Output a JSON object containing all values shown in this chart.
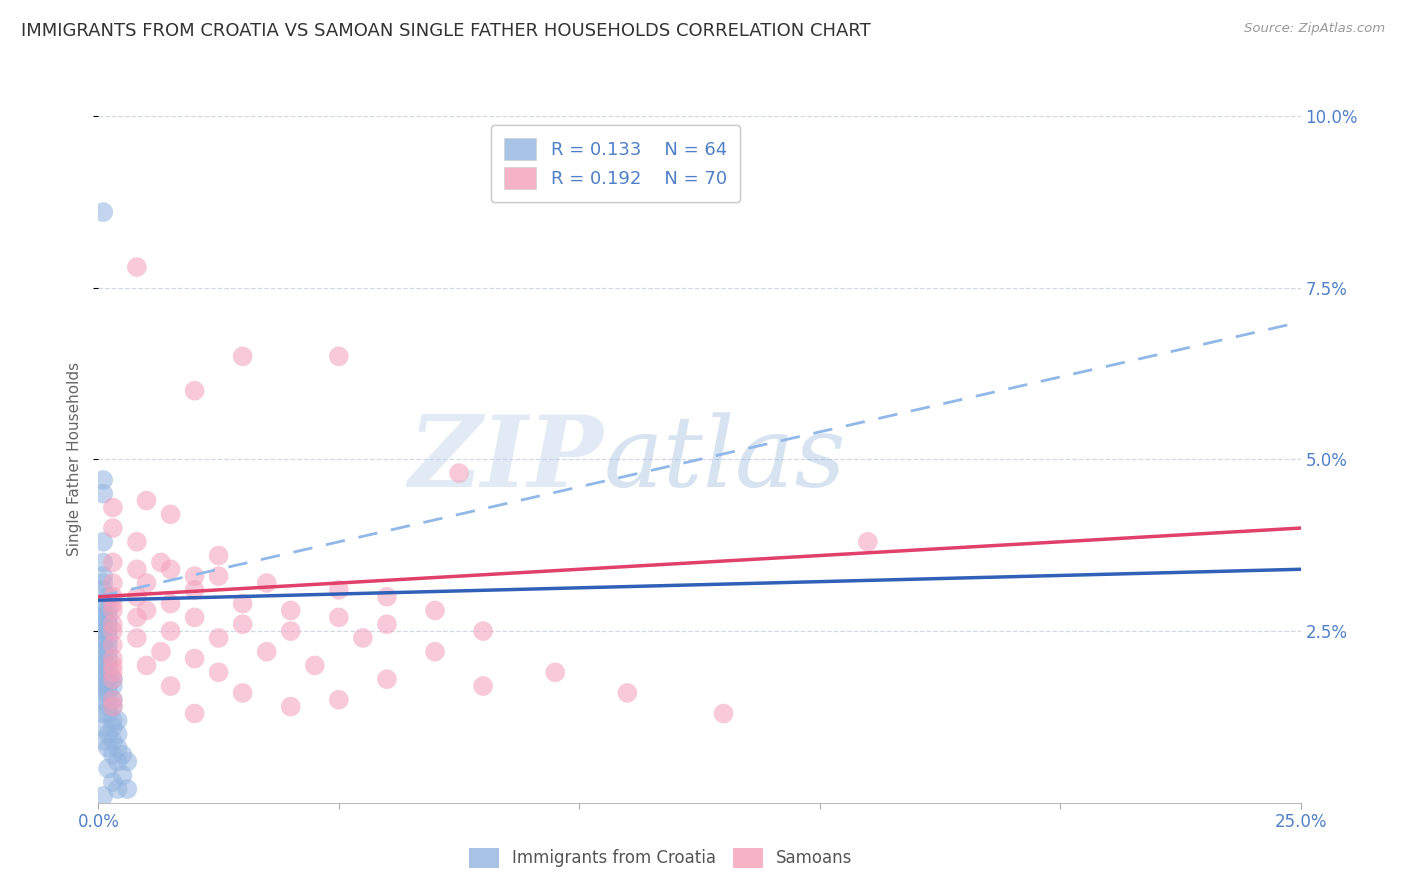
{
  "title": "IMMIGRANTS FROM CROATIA VS SAMOAN SINGLE FATHER HOUSEHOLDS CORRELATION CHART",
  "source": "Source: ZipAtlas.com",
  "ylabel": "Single Father Households",
  "xlim": [
    0.0,
    0.25
  ],
  "ylim": [
    0.0,
    0.1
  ],
  "xticks": [
    0.0,
    0.05,
    0.1,
    0.15,
    0.2,
    0.25
  ],
  "xtick_labels_show": [
    "0.0%",
    "",
    "",
    "",
    "",
    "25.0%"
  ],
  "yticks": [
    0.025,
    0.05,
    0.075,
    0.1
  ],
  "ytick_labels": [
    "2.5%",
    "5.0%",
    "7.5%",
    "10.0%"
  ],
  "croatia_R": "0.133",
  "croatia_N": "64",
  "samoan_R": "0.192",
  "samoan_N": "70",
  "croatia_color": "#93b4e0",
  "samoan_color": "#f4a0bb",
  "trendline_croatia_color": "#3060b8",
  "trendline_samoan_color": "#e0406a",
  "dashed_line_color": "#90b8e8",
  "watermark_zip": "ZIP",
  "watermark_atlas": "atlas",
  "background_color": "#ffffff",
  "grid_color": "#d0d8e8",
  "right_axis_color": "#5080c8",
  "title_color": "#333333",
  "source_color": "#999999",
  "croatia_trend": [
    0.0,
    0.0295,
    0.25,
    0.034
  ],
  "samoan_trend": [
    0.0,
    0.03,
    0.25,
    0.04
  ],
  "dashed_trend": [
    0.0,
    0.03,
    0.25,
    0.07
  ],
  "croatia_points": [
    [
      0.001,
      0.086
    ],
    [
      0.001,
      0.047
    ],
    [
      0.001,
      0.045
    ],
    [
      0.001,
      0.038
    ],
    [
      0.001,
      0.035
    ],
    [
      0.001,
      0.033
    ],
    [
      0.001,
      0.032
    ],
    [
      0.001,
      0.031
    ],
    [
      0.002,
      0.03
    ],
    [
      0.001,
      0.029
    ],
    [
      0.002,
      0.028
    ],
    [
      0.001,
      0.028
    ],
    [
      0.002,
      0.027
    ],
    [
      0.001,
      0.027
    ],
    [
      0.002,
      0.026
    ],
    [
      0.001,
      0.026
    ],
    [
      0.001,
      0.025
    ],
    [
      0.002,
      0.025
    ],
    [
      0.001,
      0.024
    ],
    [
      0.002,
      0.024
    ],
    [
      0.001,
      0.023
    ],
    [
      0.002,
      0.023
    ],
    [
      0.001,
      0.022
    ],
    [
      0.002,
      0.022
    ],
    [
      0.002,
      0.021
    ],
    [
      0.001,
      0.021
    ],
    [
      0.002,
      0.02
    ],
    [
      0.001,
      0.02
    ],
    [
      0.002,
      0.019
    ],
    [
      0.001,
      0.019
    ],
    [
      0.002,
      0.018
    ],
    [
      0.001,
      0.018
    ],
    [
      0.003,
      0.018
    ],
    [
      0.001,
      0.017
    ],
    [
      0.002,
      0.017
    ],
    [
      0.003,
      0.017
    ],
    [
      0.001,
      0.016
    ],
    [
      0.002,
      0.016
    ],
    [
      0.003,
      0.015
    ],
    [
      0.001,
      0.015
    ],
    [
      0.002,
      0.014
    ],
    [
      0.003,
      0.014
    ],
    [
      0.001,
      0.013
    ],
    [
      0.002,
      0.013
    ],
    [
      0.003,
      0.012
    ],
    [
      0.004,
      0.012
    ],
    [
      0.001,
      0.011
    ],
    [
      0.003,
      0.011
    ],
    [
      0.004,
      0.01
    ],
    [
      0.002,
      0.01
    ],
    [
      0.001,
      0.009
    ],
    [
      0.003,
      0.009
    ],
    [
      0.004,
      0.008
    ],
    [
      0.002,
      0.008
    ],
    [
      0.005,
      0.007
    ],
    [
      0.003,
      0.007
    ],
    [
      0.004,
      0.006
    ],
    [
      0.006,
      0.006
    ],
    [
      0.002,
      0.005
    ],
    [
      0.005,
      0.004
    ],
    [
      0.003,
      0.003
    ],
    [
      0.004,
      0.002
    ],
    [
      0.001,
      0.001
    ],
    [
      0.006,
      0.002
    ]
  ],
  "samoan_points": [
    [
      0.008,
      0.078
    ],
    [
      0.02,
      0.06
    ],
    [
      0.03,
      0.065
    ],
    [
      0.05,
      0.065
    ],
    [
      0.075,
      0.048
    ],
    [
      0.01,
      0.044
    ],
    [
      0.003,
      0.043
    ],
    [
      0.015,
      0.042
    ],
    [
      0.003,
      0.04
    ],
    [
      0.008,
      0.038
    ],
    [
      0.025,
      0.036
    ],
    [
      0.013,
      0.035
    ],
    [
      0.003,
      0.035
    ],
    [
      0.008,
      0.034
    ],
    [
      0.015,
      0.034
    ],
    [
      0.02,
      0.033
    ],
    [
      0.025,
      0.033
    ],
    [
      0.003,
      0.032
    ],
    [
      0.01,
      0.032
    ],
    [
      0.035,
      0.032
    ],
    [
      0.05,
      0.031
    ],
    [
      0.02,
      0.031
    ],
    [
      0.003,
      0.03
    ],
    [
      0.008,
      0.03
    ],
    [
      0.06,
      0.03
    ],
    [
      0.015,
      0.029
    ],
    [
      0.03,
      0.029
    ],
    [
      0.003,
      0.029
    ],
    [
      0.01,
      0.028
    ],
    [
      0.04,
      0.028
    ],
    [
      0.07,
      0.028
    ],
    [
      0.003,
      0.028
    ],
    [
      0.02,
      0.027
    ],
    [
      0.05,
      0.027
    ],
    [
      0.008,
      0.027
    ],
    [
      0.03,
      0.026
    ],
    [
      0.06,
      0.026
    ],
    [
      0.003,
      0.026
    ],
    [
      0.015,
      0.025
    ],
    [
      0.04,
      0.025
    ],
    [
      0.003,
      0.025
    ],
    [
      0.08,
      0.025
    ],
    [
      0.008,
      0.024
    ],
    [
      0.025,
      0.024
    ],
    [
      0.055,
      0.024
    ],
    [
      0.003,
      0.023
    ],
    [
      0.013,
      0.022
    ],
    [
      0.035,
      0.022
    ],
    [
      0.07,
      0.022
    ],
    [
      0.003,
      0.021
    ],
    [
      0.02,
      0.021
    ],
    [
      0.003,
      0.02
    ],
    [
      0.01,
      0.02
    ],
    [
      0.045,
      0.02
    ],
    [
      0.095,
      0.019
    ],
    [
      0.003,
      0.019
    ],
    [
      0.025,
      0.019
    ],
    [
      0.06,
      0.018
    ],
    [
      0.003,
      0.018
    ],
    [
      0.015,
      0.017
    ],
    [
      0.08,
      0.017
    ],
    [
      0.03,
      0.016
    ],
    [
      0.11,
      0.016
    ],
    [
      0.003,
      0.015
    ],
    [
      0.05,
      0.015
    ],
    [
      0.003,
      0.014
    ],
    [
      0.04,
      0.014
    ],
    [
      0.02,
      0.013
    ],
    [
      0.13,
      0.013
    ],
    [
      0.16,
      0.038
    ]
  ]
}
